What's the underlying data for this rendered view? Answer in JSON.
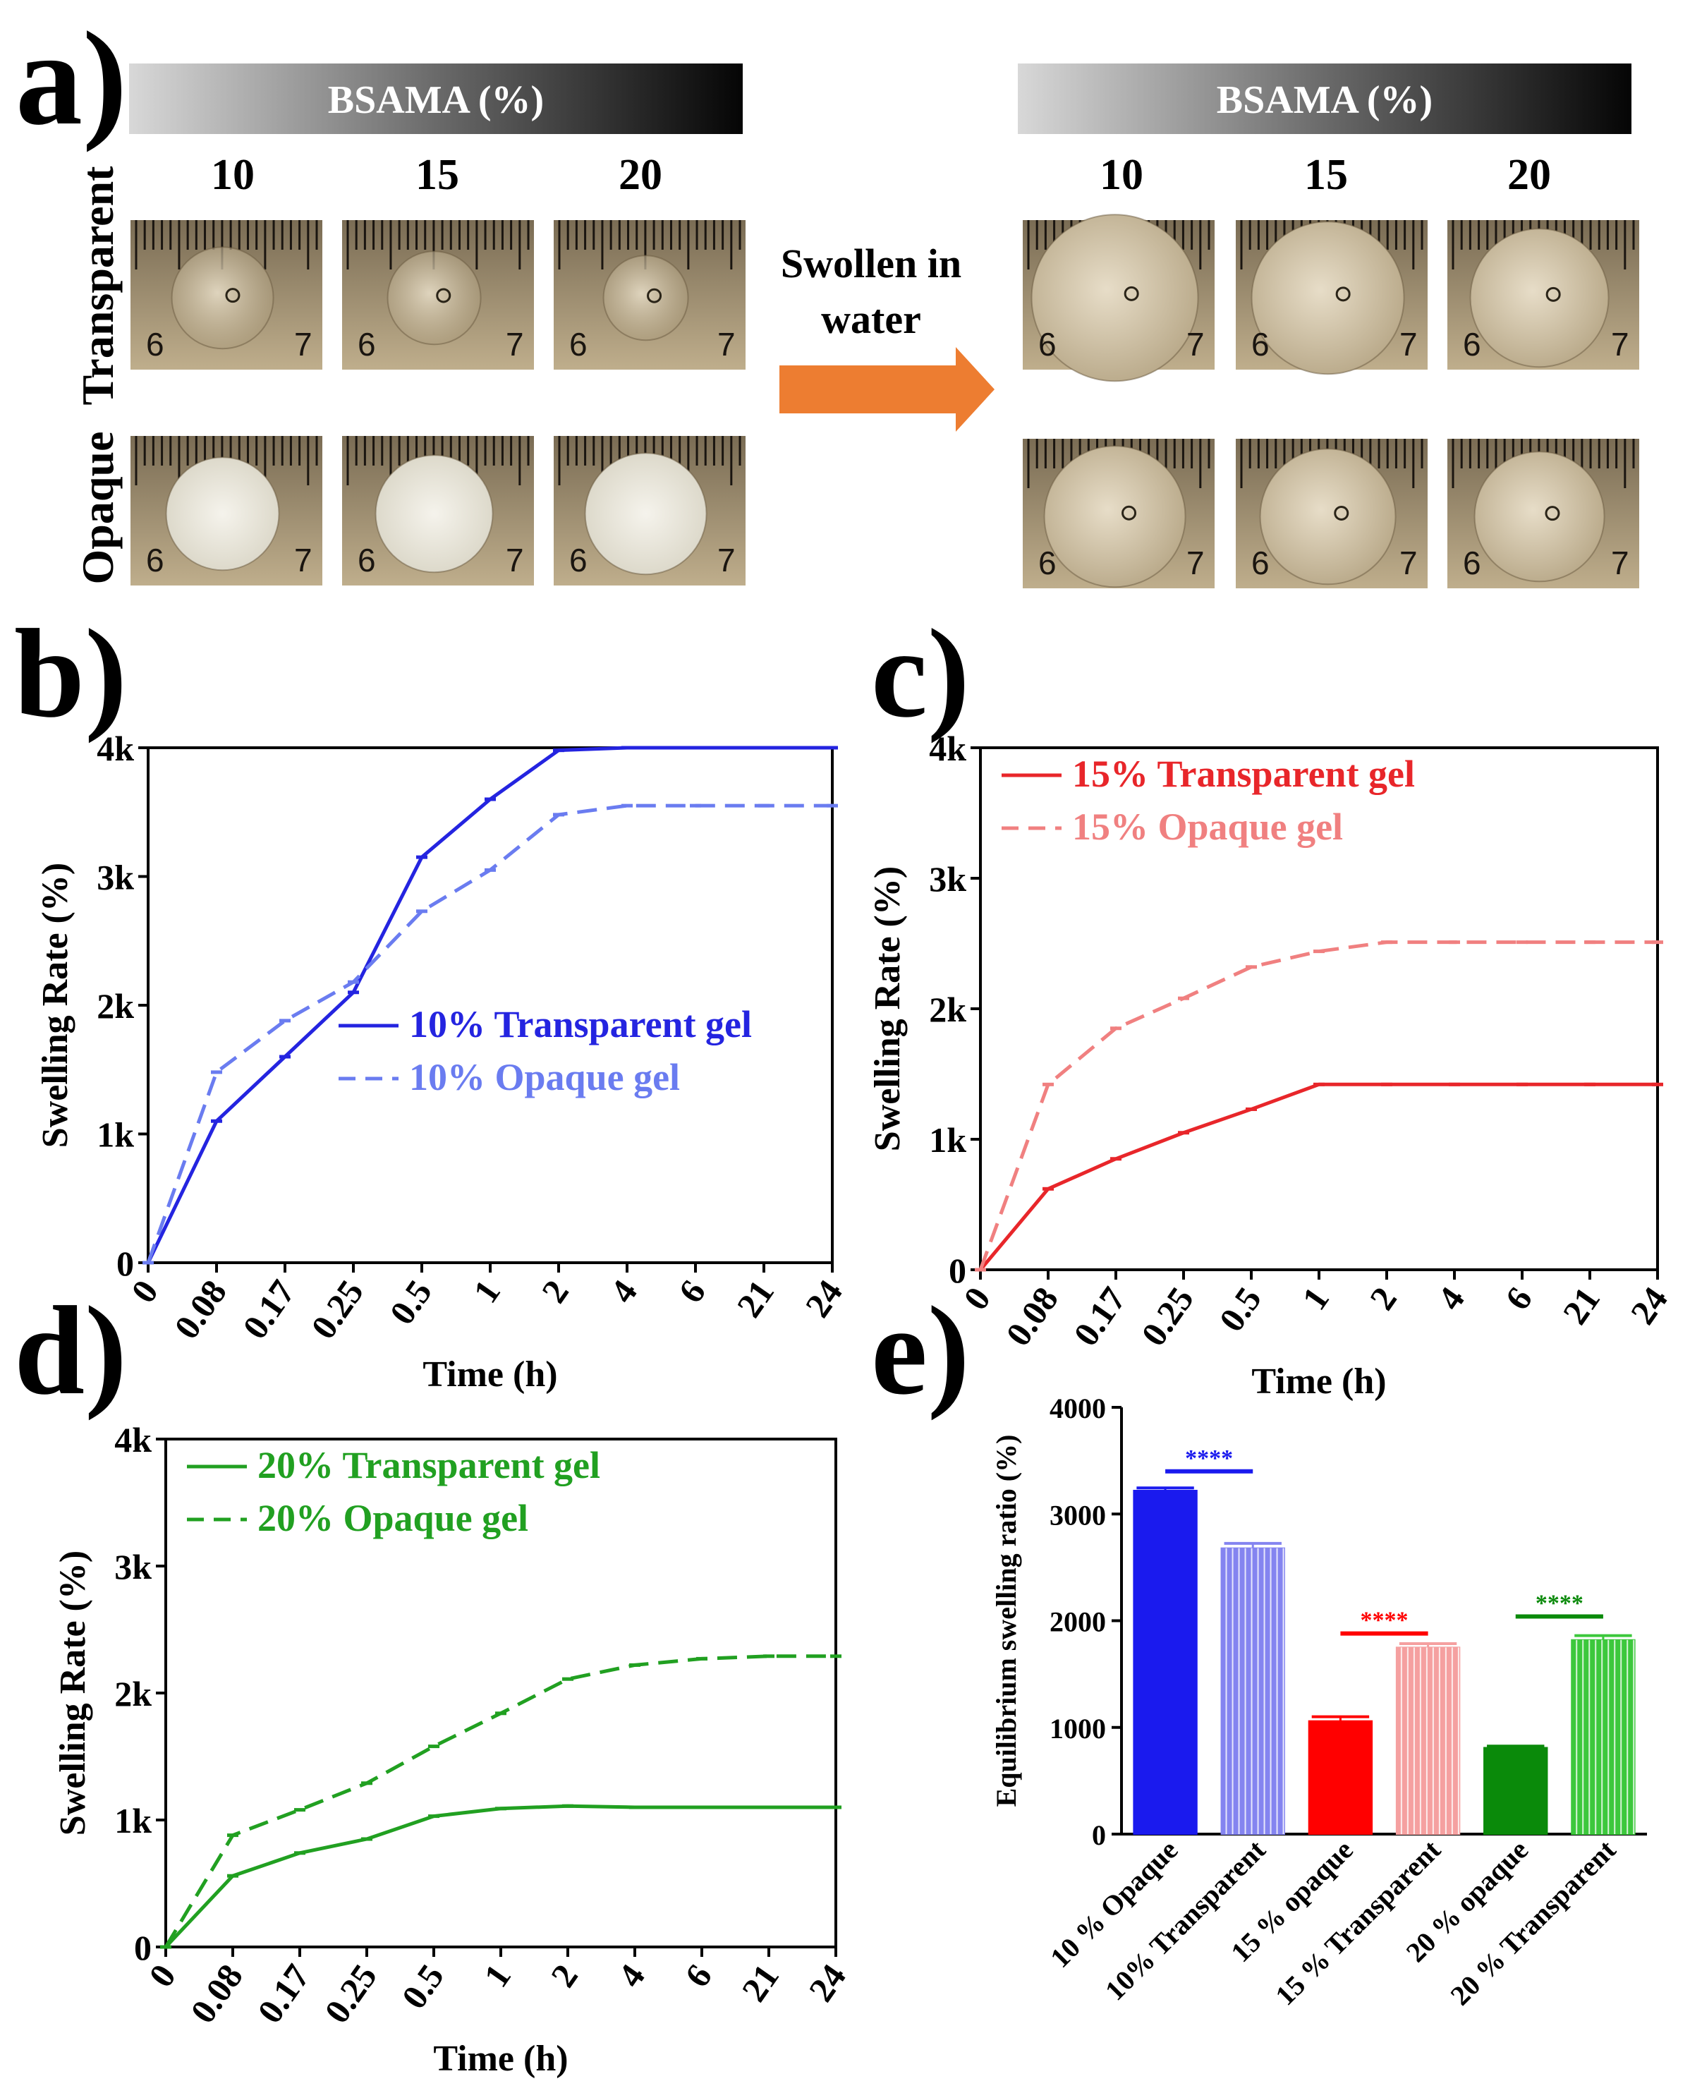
{
  "panel_a": {
    "label": "a)",
    "bsama_header": "BSAMA (%)",
    "concentrations": [
      "10",
      "15",
      "20"
    ],
    "row_labels": [
      "Transparent",
      "Opaque"
    ],
    "arrow_text": [
      "Swollen in",
      "water"
    ],
    "ruler_numbers": [
      "6",
      "7"
    ],
    "arrow_color": "#ed7d31"
  },
  "chart_data": [
    {
      "panel": "b)",
      "type": "line",
      "xlabel": "Time (h)",
      "ylabel": "Swelling Rate (%)",
      "categories": [
        "0",
        "0.08",
        "0.17",
        "0.25",
        "0.5",
        "1",
        "2",
        "4",
        "6",
        "21",
        "24"
      ],
      "ylim": [
        0,
        4000
      ],
      "yticks": [
        "0",
        "1k",
        "2k",
        "3k",
        "4k"
      ],
      "legend_position": "center-right",
      "series": [
        {
          "name": "10% Transparent gel",
          "style": "solid",
          "color": "#2424e0",
          "values": [
            0,
            1100,
            1600,
            2100,
            3150,
            3600,
            3980,
            4000,
            4000,
            4000,
            4000
          ]
        },
        {
          "name": "10% Opaque gel",
          "style": "dashed",
          "color": "#6a7cf0",
          "values": [
            0,
            1480,
            1880,
            2180,
            2730,
            3050,
            3480,
            3550,
            3550,
            3550,
            3550
          ]
        }
      ]
    },
    {
      "panel": "c)",
      "type": "line",
      "xlabel": "Time (h)",
      "ylabel": "Swelling Rate (%)",
      "categories": [
        "0",
        "0.08",
        "0.17",
        "0.25",
        "0.5",
        "1",
        "2",
        "4",
        "6",
        "21",
        "24"
      ],
      "ylim": [
        0,
        4000
      ],
      "yticks": [
        "0",
        "1k",
        "2k",
        "3k",
        "4k"
      ],
      "legend_position": "top-left",
      "series": [
        {
          "name": "15% Transparent gel",
          "style": "solid",
          "color": "#e8262a",
          "values": [
            0,
            620,
            850,
            1050,
            1230,
            1420,
            1420,
            1420,
            1420,
            1420,
            1420
          ]
        },
        {
          "name": "15% Opaque gel",
          "style": "dashed",
          "color": "#f08080",
          "values": [
            0,
            1420,
            1850,
            2080,
            2320,
            2440,
            2510,
            2510,
            2510,
            2510,
            2510
          ]
        }
      ]
    },
    {
      "panel": "d)",
      "type": "line",
      "xlabel": "Time (h)",
      "ylabel": "Swelling Rate (%)",
      "categories": [
        "0",
        "0.08",
        "0.17",
        "0.25",
        "0.5",
        "1",
        "2",
        "4",
        "6",
        "21",
        "24"
      ],
      "ylim": [
        0,
        4000
      ],
      "yticks": [
        "0",
        "1k",
        "2k",
        "3k",
        "4k"
      ],
      "legend_position": "top-left",
      "series": [
        {
          "name": "20% Transparent gel",
          "style": "solid",
          "color": "#21a021",
          "values": [
            0,
            560,
            740,
            850,
            1030,
            1090,
            1110,
            1100,
            1100,
            1100,
            1100
          ]
        },
        {
          "name": "20% Opaque gel",
          "style": "dashed",
          "color": "#21a021",
          "values": [
            0,
            880,
            1080,
            1290,
            1580,
            1840,
            2110,
            2220,
            2270,
            2290,
            2290
          ]
        }
      ]
    },
    {
      "panel": "e)",
      "type": "bar",
      "xlabel": "",
      "ylabel": "Equilibrium swelling ratio (%)",
      "categories": [
        "10 % Opaque",
        "10% Transparent",
        "15 % opaque",
        "15 % Transparent",
        "20 % opaque",
        "20 % Transparent"
      ],
      "values": [
        3220,
        2680,
        1060,
        1750,
        810,
        1820
      ],
      "errors": [
        25,
        45,
        40,
        35,
        15,
        40
      ],
      "colors": [
        "#1a1aee",
        "#8484f0",
        "#ff0000",
        "#f5a0a0",
        "#0a8a0a",
        "#3cc83c"
      ],
      "patterns": [
        "solid",
        "striped",
        "solid",
        "striped",
        "solid",
        "striped"
      ],
      "ylim": [
        0,
        4000
      ],
      "yticks": [
        "0",
        "1000",
        "2000",
        "3000",
        "4000"
      ],
      "significance": [
        {
          "pair": [
            0,
            1
          ],
          "label": "****",
          "color": "#1a1aee",
          "level": 3400
        },
        {
          "pair": [
            2,
            3
          ],
          "label": "****",
          "color": "#ff0000",
          "level": 1880
        },
        {
          "pair": [
            4,
            5
          ],
          "label": "****",
          "color": "#0a8a0a",
          "level": 2040
        }
      ]
    }
  ]
}
